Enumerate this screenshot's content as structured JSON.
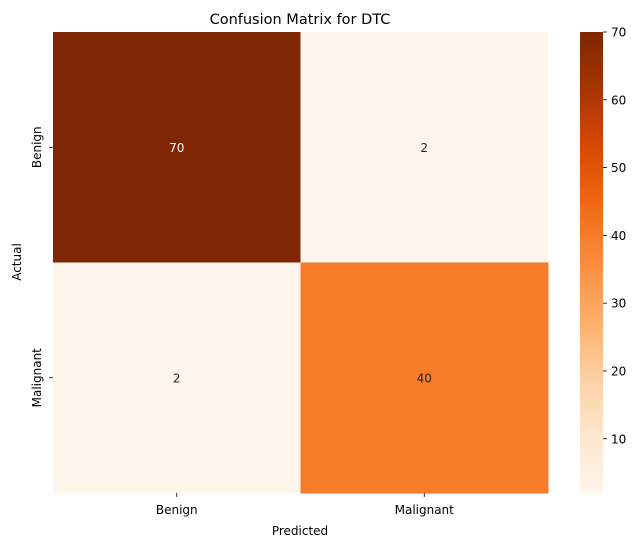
{
  "chart_data": {
    "type": "heatmap",
    "title": "Confusion Matrix for DTC",
    "xlabel": "Predicted",
    "ylabel": "Actual",
    "x_categories": [
      "Benign",
      "Malignant"
    ],
    "y_categories": [
      "Benign",
      "Malignant"
    ],
    "values": [
      [
        70,
        2
      ],
      [
        2,
        40
      ]
    ],
    "colormap": "Oranges",
    "colorbar": {
      "range": [
        2,
        70
      ],
      "ticks": [
        10,
        20,
        30,
        40,
        50,
        60,
        70
      ],
      "tick_labels": [
        "10",
        "20",
        "30",
        "40",
        "50",
        "60",
        "70"
      ]
    },
    "colors": {
      "low": "#fff5eb",
      "high": "#7f2704"
    }
  }
}
